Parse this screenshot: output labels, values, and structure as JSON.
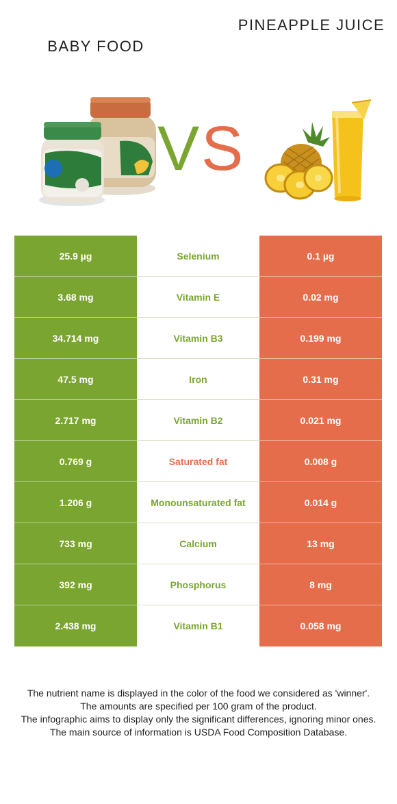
{
  "header": {
    "left_title": "BABY FOOD",
    "right_title": "PINEAPPLE JUICE",
    "vs": "VS"
  },
  "colors": {
    "winner_left": "#7aa531",
    "winner_right": "#e56d4b"
  },
  "rows": [
    {
      "left": "25.9 µg",
      "nutrient": "Selenium",
      "right": "0.1 µg",
      "winner": "left"
    },
    {
      "left": "3.68 mg",
      "nutrient": "Vitamin E",
      "right": "0.02 mg",
      "winner": "left"
    },
    {
      "left": "34.714 mg",
      "nutrient": "Vitamin B3",
      "right": "0.199 mg",
      "winner": "left"
    },
    {
      "left": "47.5 mg",
      "nutrient": "Iron",
      "right": "0.31 mg",
      "winner": "left"
    },
    {
      "left": "2.717 mg",
      "nutrient": "Vitamin B2",
      "right": "0.021 mg",
      "winner": "left"
    },
    {
      "left": "0.769 g",
      "nutrient": "Saturated fat",
      "right": "0.008 g",
      "winner": "right"
    },
    {
      "left": "1.206 g",
      "nutrient": "Monounsaturated fat",
      "right": "0.014 g",
      "winner": "left"
    },
    {
      "left": "733 mg",
      "nutrient": "Calcium",
      "right": "13 mg",
      "winner": "left"
    },
    {
      "left": "392 mg",
      "nutrient": "Phosphorus",
      "right": "8 mg",
      "winner": "left"
    },
    {
      "left": "2.438 mg",
      "nutrient": "Vitamin B1",
      "right": "0.058 mg",
      "winner": "left"
    }
  ],
  "footer": {
    "line1": "The nutrient name is displayed in the color of the food we considered as 'winner'.",
    "line2": "The amounts are specified per 100 gram of the product.",
    "line3": "The infographic aims to display only the significant differences, ignoring minor ones.",
    "line4": "The main source of information is USDA Food Composition Database."
  }
}
